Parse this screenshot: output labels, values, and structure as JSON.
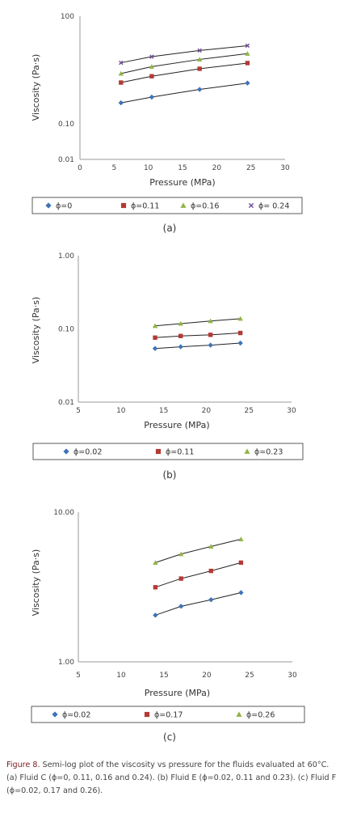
{
  "chart_data": [
    {
      "type": "line",
      "log_y": true,
      "xlabel": "Pressure (MPa)",
      "ylabel": "Viscosity (Pa·s)",
      "xlim": [
        0,
        30
      ],
      "xticks": [
        "0",
        "5",
        "10",
        "15",
        "20",
        "25",
        "30"
      ],
      "ylim": [
        0.01,
        100
      ],
      "yticks": [
        "100",
        "0.10",
        "0.01"
      ],
      "subtitle": "(a)",
      "series": [
        {
          "name": "ϕ=0",
          "marker": "diamond",
          "color": "#3f73b7",
          "x": [
            6,
            10.5,
            17.5,
            24.5
          ],
          "y": [
            0.38,
            0.55,
            0.9,
            1.35
          ]
        },
        {
          "name": "ϕ=0.11",
          "marker": "square",
          "color": "#b33a36",
          "x": [
            6,
            10.5,
            17.5,
            24.5
          ],
          "y": [
            1.4,
            2.1,
            3.4,
            4.9
          ]
        },
        {
          "name": "ϕ=0.16",
          "marker": "triangle",
          "color": "#93b446",
          "x": [
            6,
            10.5,
            17.5,
            24.5
          ],
          "y": [
            2.5,
            3.9,
            6.2,
            9.0
          ]
        },
        {
          "name": "ϕ= 0.24",
          "marker": "x",
          "color": "#6e4a96",
          "x": [
            6,
            10.5,
            17.5,
            24.5
          ],
          "y": [
            5.0,
            7.4,
            11.0,
            15.0
          ]
        }
      ]
    },
    {
      "type": "line",
      "log_y": true,
      "xlabel": "Pressure (MPa)",
      "ylabel": "Viscosity (Pa·s)",
      "xlim": [
        5,
        30
      ],
      "xticks": [
        "5",
        "10",
        "15",
        "20",
        "25",
        "30"
      ],
      "ylim": [
        0.01,
        1.0
      ],
      "yticks": [
        "1.00",
        "0.10",
        "0.01"
      ],
      "subtitle": "(b)",
      "series": [
        {
          "name": "ϕ=0.02",
          "marker": "diamond",
          "color": "#3f73b7",
          "x": [
            14,
            17,
            20.5,
            24
          ],
          "y": [
            0.054,
            0.057,
            0.06,
            0.064
          ]
        },
        {
          "name": "ϕ=0.11",
          "marker": "square",
          "color": "#b33a36",
          "x": [
            14,
            17,
            20.5,
            24
          ],
          "y": [
            0.076,
            0.08,
            0.083,
            0.088
          ]
        },
        {
          "name": "ϕ=0.23",
          "marker": "triangle",
          "color": "#93b446",
          "x": [
            14,
            17,
            20.5,
            24
          ],
          "y": [
            0.11,
            0.118,
            0.128,
            0.138
          ]
        }
      ]
    },
    {
      "type": "line",
      "log_y": true,
      "xlabel": "Pressure (MPa)",
      "ylabel": "Viscosity (Pa·s)",
      "xlim": [
        5,
        30
      ],
      "xticks": [
        "5",
        "10",
        "15",
        "20",
        "25",
        "30"
      ],
      "ylim": [
        1.0,
        10.0
      ],
      "yticks": [
        "10.00",
        "1.00"
      ],
      "subtitle": "(c)",
      "series": [
        {
          "name": "ϕ=0.02",
          "marker": "diamond",
          "color": "#3f73b7",
          "x": [
            14,
            17,
            20.5,
            24
          ],
          "y": [
            2.05,
            2.35,
            2.6,
            2.9
          ]
        },
        {
          "name": "ϕ=0.17",
          "marker": "square",
          "color": "#b33a36",
          "x": [
            14,
            17,
            20.5,
            24
          ],
          "y": [
            3.15,
            3.6,
            4.05,
            4.6
          ]
        },
        {
          "name": "ϕ=0.26",
          "marker": "triangle",
          "color": "#93b446",
          "x": [
            14,
            17,
            20.5,
            24
          ],
          "y": [
            4.6,
            5.25,
            5.9,
            6.6
          ]
        }
      ]
    }
  ],
  "caption": {
    "label": "Figure 8.",
    "text": " Semi-log plot of the viscosity vs pressure for the fluids evaluated at 60°C. (a) Fluid C (ϕ=0, 0.11, 0.16 and 0.24). (b) Fluid E (ϕ=0.02, 0.11 and 0.23). (c) Fluid F (ϕ=0.02, 0.17 and 0.26)."
  }
}
